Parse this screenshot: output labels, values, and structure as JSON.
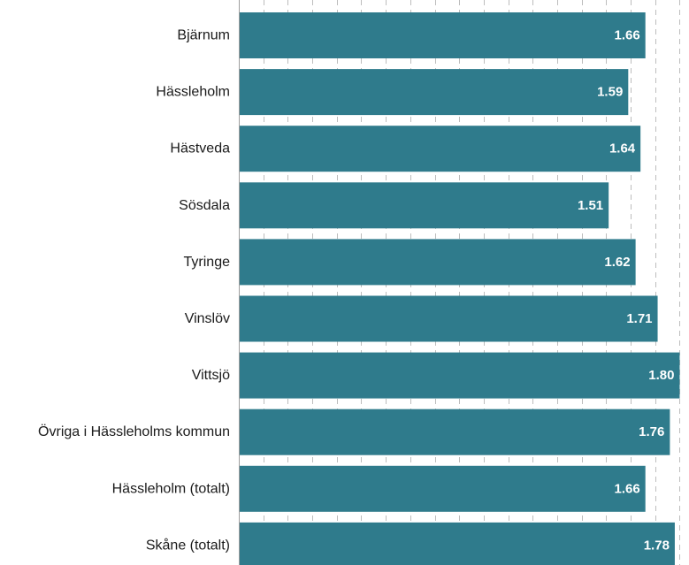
{
  "chart_data": {
    "type": "bar",
    "orientation": "horizontal",
    "categories": [
      "Bjärnum",
      "Hässleholm",
      "Hästveda",
      "Sösdala",
      "Tyringe",
      "Vinslöv",
      "Vittsjö",
      "Övriga i Hässleholms kommun",
      "Hässleholm (totalt)",
      "Skåne (totalt)"
    ],
    "values": [
      1.66,
      1.59,
      1.64,
      1.51,
      1.62,
      1.71,
      1.8,
      1.76,
      1.66,
      1.78
    ],
    "value_labels": [
      "1.66",
      "1.59",
      "1.64",
      "1.51",
      "1.62",
      "1.71",
      "1.80",
      "1.76",
      "1.66",
      "1.78"
    ],
    "title": "",
    "xlabel": "",
    "ylabel": "",
    "xlim": [
      0,
      1.82
    ],
    "grid_step": 0.2,
    "grid": true,
    "legend": "none",
    "bar_color": "#2f7b8c"
  }
}
